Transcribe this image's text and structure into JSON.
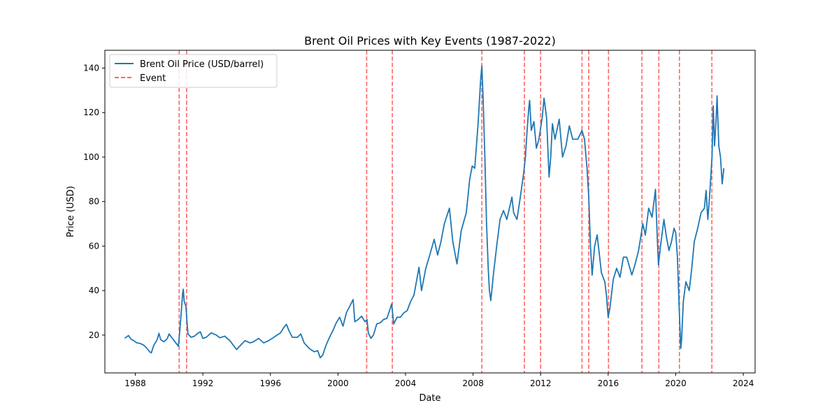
{
  "chart_data": {
    "type": "line",
    "title": "Brent Oil Prices with Key Events (1987-2022)",
    "xlabel": "Date",
    "ylabel": "Price (USD)",
    "xlim": [
      1986.2,
      2024.7
    ],
    "ylim": [
      3,
      148
    ],
    "xticks": [
      1988,
      1992,
      1996,
      2000,
      2004,
      2008,
      2012,
      2016,
      2020,
      2024
    ],
    "yticks": [
      20,
      40,
      60,
      80,
      100,
      120,
      140
    ],
    "legend_position": "top-left",
    "grid": false,
    "series": [
      {
        "name": "Brent Oil Price (USD/barrel)",
        "color": "#1f77b4",
        "points": [
          [
            1987.38,
            18.6
          ],
          [
            1987.6,
            19.8
          ],
          [
            1987.75,
            18.2
          ],
          [
            1987.9,
            17.5
          ],
          [
            1988.1,
            16.5
          ],
          [
            1988.3,
            16.2
          ],
          [
            1988.5,
            15.5
          ],
          [
            1988.7,
            14.0
          ],
          [
            1988.85,
            12.5
          ],
          [
            1988.95,
            12.0
          ],
          [
            1989.1,
            15.5
          ],
          [
            1989.3,
            18.0
          ],
          [
            1989.4,
            20.8
          ],
          [
            1989.5,
            18.0
          ],
          [
            1989.7,
            17.0
          ],
          [
            1989.9,
            18.5
          ],
          [
            1990.0,
            20.5
          ],
          [
            1990.15,
            19.0
          ],
          [
            1990.3,
            17.5
          ],
          [
            1990.45,
            16.0
          ],
          [
            1990.55,
            15.0
          ],
          [
            1990.62,
            20.5
          ],
          [
            1990.72,
            30.0
          ],
          [
            1990.8,
            38.5
          ],
          [
            1990.84,
            40.6
          ],
          [
            1990.9,
            35.0
          ],
          [
            1991.0,
            33.0
          ],
          [
            1991.05,
            27.0
          ],
          [
            1991.12,
            20.5
          ],
          [
            1991.3,
            19.0
          ],
          [
            1991.5,
            19.5
          ],
          [
            1991.7,
            20.8
          ],
          [
            1991.85,
            21.5
          ],
          [
            1992.0,
            18.5
          ],
          [
            1992.2,
            19.0
          ],
          [
            1992.5,
            21.0
          ],
          [
            1992.8,
            20.0
          ],
          [
            1993.0,
            18.8
          ],
          [
            1993.3,
            19.5
          ],
          [
            1993.6,
            17.5
          ],
          [
            1993.9,
            14.5
          ],
          [
            1994.0,
            13.5
          ],
          [
            1994.3,
            16.0
          ],
          [
            1994.5,
            17.5
          ],
          [
            1994.8,
            16.5
          ],
          [
            1995.0,
            17.0
          ],
          [
            1995.3,
            18.5
          ],
          [
            1995.6,
            16.5
          ],
          [
            1995.9,
            17.5
          ],
          [
            1996.2,
            19.0
          ],
          [
            1996.4,
            20.0
          ],
          [
            1996.6,
            21.0
          ],
          [
            1996.8,
            23.5
          ],
          [
            1996.95,
            24.8
          ],
          [
            1997.1,
            22.0
          ],
          [
            1997.3,
            19.0
          ],
          [
            1997.6,
            19.0
          ],
          [
            1997.8,
            20.5
          ],
          [
            1998.0,
            16.5
          ],
          [
            1998.3,
            14.0
          ],
          [
            1998.6,
            12.5
          ],
          [
            1998.8,
            13.0
          ],
          [
            1998.95,
            9.8
          ],
          [
            1999.1,
            11.0
          ],
          [
            1999.3,
            15.5
          ],
          [
            1999.5,
            19.0
          ],
          [
            1999.7,
            22.0
          ],
          [
            1999.9,
            25.5
          ],
          [
            2000.1,
            28.0
          ],
          [
            2000.3,
            24.0
          ],
          [
            2000.5,
            30.0
          ],
          [
            2000.7,
            33.0
          ],
          [
            2000.9,
            36.0
          ],
          [
            2001.0,
            26.0
          ],
          [
            2001.2,
            27.0
          ],
          [
            2001.4,
            28.5
          ],
          [
            2001.6,
            26.0
          ],
          [
            2001.72,
            27.0
          ],
          [
            2001.8,
            21.0
          ],
          [
            2001.95,
            18.5
          ],
          [
            2002.1,
            20.0
          ],
          [
            2002.3,
            25.0
          ],
          [
            2002.5,
            25.5
          ],
          [
            2002.7,
            27.0
          ],
          [
            2002.9,
            27.5
          ],
          [
            2003.1,
            32.0
          ],
          [
            2003.18,
            34.0
          ],
          [
            2003.3,
            25.0
          ],
          [
            2003.5,
            28.0
          ],
          [
            2003.7,
            28.0
          ],
          [
            2003.9,
            30.0
          ],
          [
            2004.1,
            31.0
          ],
          [
            2004.3,
            35.0
          ],
          [
            2004.5,
            38.0
          ],
          [
            2004.8,
            50.5
          ],
          [
            2004.95,
            40.0
          ],
          [
            2005.2,
            50.0
          ],
          [
            2005.4,
            55.0
          ],
          [
            2005.7,
            63.0
          ],
          [
            2005.9,
            56.0
          ],
          [
            2006.1,
            62.0
          ],
          [
            2006.3,
            70.0
          ],
          [
            2006.6,
            77.0
          ],
          [
            2006.8,
            62.0
          ],
          [
            2007.05,
            52.0
          ],
          [
            2007.3,
            67.0
          ],
          [
            2007.6,
            75.0
          ],
          [
            2007.8,
            90.0
          ],
          [
            2007.95,
            96.0
          ],
          [
            2008.1,
            95.0
          ],
          [
            2008.3,
            115.0
          ],
          [
            2008.45,
            135.0
          ],
          [
            2008.52,
            141.0
          ],
          [
            2008.6,
            125.0
          ],
          [
            2008.7,
            100.0
          ],
          [
            2008.8,
            70.0
          ],
          [
            2008.9,
            50.0
          ],
          [
            2008.97,
            40.0
          ],
          [
            2009.05,
            35.5
          ],
          [
            2009.2,
            47.0
          ],
          [
            2009.4,
            60.0
          ],
          [
            2009.6,
            72.0
          ],
          [
            2009.8,
            76.0
          ],
          [
            2010.0,
            72.0
          ],
          [
            2010.3,
            82.0
          ],
          [
            2010.4,
            75.0
          ],
          [
            2010.6,
            72.0
          ],
          [
            2010.8,
            82.0
          ],
          [
            2011.0,
            93.0
          ],
          [
            2011.1,
            100.0
          ],
          [
            2011.2,
            112.0
          ],
          [
            2011.3,
            122.0
          ],
          [
            2011.35,
            125.5
          ],
          [
            2011.45,
            112.0
          ],
          [
            2011.6,
            116.0
          ],
          [
            2011.75,
            104.0
          ],
          [
            2011.9,
            108.0
          ],
          [
            2012.1,
            118.0
          ],
          [
            2012.2,
            126.5
          ],
          [
            2012.35,
            118.0
          ],
          [
            2012.5,
            91.0
          ],
          [
            2012.6,
            100.0
          ],
          [
            2012.7,
            115.0
          ],
          [
            2012.85,
            108.0
          ],
          [
            2013.1,
            117.0
          ],
          [
            2013.3,
            100.0
          ],
          [
            2013.5,
            105.0
          ],
          [
            2013.7,
            114.0
          ],
          [
            2013.9,
            108.0
          ],
          [
            2014.2,
            108.0
          ],
          [
            2014.45,
            112.0
          ],
          [
            2014.6,
            108.0
          ],
          [
            2014.75,
            95.0
          ],
          [
            2014.85,
            82.0
          ],
          [
            2014.95,
            60.0
          ],
          [
            2015.05,
            47.0
          ],
          [
            2015.2,
            60.0
          ],
          [
            2015.35,
            65.0
          ],
          [
            2015.6,
            48.0
          ],
          [
            2015.8,
            44.0
          ],
          [
            2015.9,
            38.0
          ],
          [
            2016.0,
            28.0
          ],
          [
            2016.1,
            32.0
          ],
          [
            2016.3,
            45.0
          ],
          [
            2016.5,
            50.0
          ],
          [
            2016.7,
            46.0
          ],
          [
            2016.9,
            55.0
          ],
          [
            2017.1,
            55.0
          ],
          [
            2017.4,
            47.0
          ],
          [
            2017.6,
            52.0
          ],
          [
            2017.8,
            58.0
          ],
          [
            2017.95,
            65.0
          ],
          [
            2018.05,
            70.0
          ],
          [
            2018.2,
            65.0
          ],
          [
            2018.4,
            77.0
          ],
          [
            2018.6,
            73.0
          ],
          [
            2018.8,
            85.5
          ],
          [
            2018.9,
            65.0
          ],
          [
            2018.98,
            51.5
          ],
          [
            2019.1,
            60.0
          ],
          [
            2019.3,
            72.0
          ],
          [
            2019.45,
            64.0
          ],
          [
            2019.6,
            58.0
          ],
          [
            2019.75,
            62.0
          ],
          [
            2019.9,
            68.0
          ],
          [
            2020.0,
            66.0
          ],
          [
            2020.1,
            55.0
          ],
          [
            2020.2,
            33.0
          ],
          [
            2020.3,
            14.0
          ],
          [
            2020.35,
            18.0
          ],
          [
            2020.45,
            35.0
          ],
          [
            2020.6,
            44.0
          ],
          [
            2020.8,
            40.0
          ],
          [
            2020.95,
            50.0
          ],
          [
            2021.1,
            62.0
          ],
          [
            2021.3,
            68.0
          ],
          [
            2021.5,
            75.0
          ],
          [
            2021.7,
            77.0
          ],
          [
            2021.8,
            85.0
          ],
          [
            2021.9,
            72.0
          ],
          [
            2022.0,
            82.0
          ],
          [
            2022.15,
            100.0
          ],
          [
            2022.22,
            123.0
          ],
          [
            2022.3,
            105.0
          ],
          [
            2022.4,
            118.0
          ],
          [
            2022.45,
            127.5
          ],
          [
            2022.55,
            105.0
          ],
          [
            2022.65,
            100.0
          ],
          [
            2022.75,
            88.0
          ],
          [
            2022.85,
            95.0
          ]
        ]
      }
    ],
    "events": {
      "name": "Event",
      "color": "#ff6666",
      "dates": [
        1990.6,
        1991.04,
        2001.7,
        2003.22,
        2008.52,
        2011.04,
        2012.0,
        2014.45,
        2014.85,
        2016.02,
        2018.0,
        2019.0,
        2020.22,
        2022.14
      ]
    }
  }
}
